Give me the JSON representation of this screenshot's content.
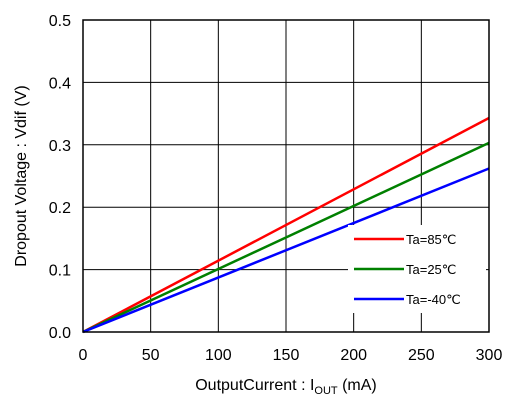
{
  "chart_data": {
    "type": "line",
    "title": "",
    "xlabel": "OutputCurrent : I",
    "xlabel_sub": "OUT",
    "xlabel_unit": " (mA)",
    "ylabel": "Dropout Voltage : Vdif (V)",
    "xlim": [
      0,
      300
    ],
    "ylim": [
      0,
      0.5
    ],
    "xticks": [
      0,
      50,
      100,
      150,
      200,
      250,
      300
    ],
    "yticks": [
      0.0,
      0.1,
      0.2,
      0.3,
      0.4,
      0.5
    ],
    "xtick_labels": [
      "0",
      "50",
      "100",
      "150",
      "200",
      "250",
      "300"
    ],
    "ytick_labels": [
      "0.0",
      "0.1",
      "0.2",
      "0.3",
      "0.4",
      "0.5"
    ],
    "grid": true,
    "legend_position": "bottom-right",
    "series": [
      {
        "name": "Ta=85℃",
        "color": "#ff0000",
        "x": [
          0,
          300
        ],
        "y": [
          0,
          0.343
        ]
      },
      {
        "name": "Ta=25℃",
        "color": "#008000",
        "x": [
          0,
          300
        ],
        "y": [
          0,
          0.303
        ]
      },
      {
        "name": "Ta=-40℃",
        "color": "#0000ff",
        "x": [
          0,
          300
        ],
        "y": [
          0,
          0.262
        ]
      }
    ]
  }
}
